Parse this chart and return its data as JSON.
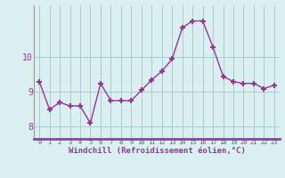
{
  "x": [
    0,
    1,
    2,
    3,
    4,
    5,
    6,
    7,
    8,
    9,
    10,
    11,
    12,
    13,
    14,
    15,
    16,
    17,
    18,
    19,
    20,
    21,
    22,
    23
  ],
  "y": [
    9.3,
    8.5,
    8.7,
    8.6,
    8.6,
    8.1,
    9.25,
    8.75,
    8.75,
    8.75,
    9.05,
    9.35,
    9.6,
    9.95,
    10.85,
    11.05,
    11.05,
    10.3,
    9.45,
    9.3,
    9.25,
    9.25,
    9.1,
    9.2
  ],
  "line_color": "#993399",
  "marker": "+",
  "bg_color": "#daf0f0",
  "grid_color": "#aacccc",
  "xlabel": "Windchill (Refroidissement éolien,°C)",
  "xlabel_color": "#993399",
  "axis_label_color": "#993399",
  "yticks": [
    8,
    9,
    10
  ],
  "ylim": [
    7.65,
    11.5
  ],
  "xlim": [
    -0.5,
    23.5
  ],
  "bottom_bar_color": "#8844aa"
}
